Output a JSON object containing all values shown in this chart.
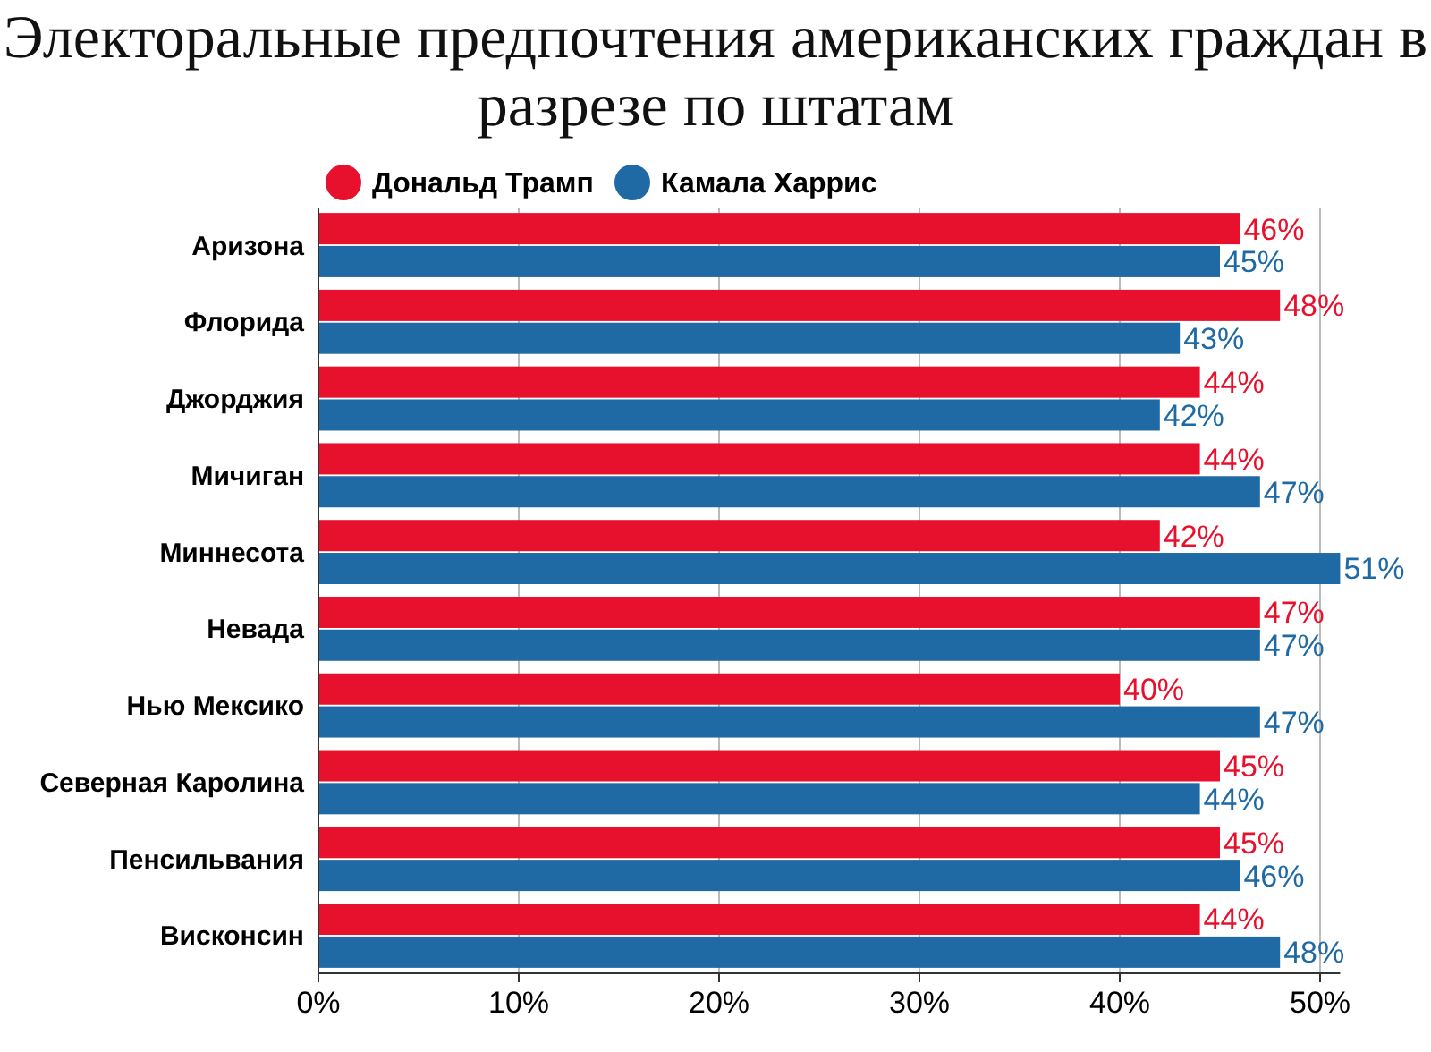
{
  "chart_data": {
    "type": "bar",
    "orientation": "horizontal",
    "title": "Электоральные предпочтения американских граждан в разрезе по штатам",
    "categories": [
      "Аризона",
      "Флорида",
      "Джорджия",
      "Мичиган",
      "Миннесота",
      "Невада",
      "Нью Мексико",
      "Северная Каролина",
      "Пенсильвания",
      "Висконсин"
    ],
    "series": [
      {
        "name": "Дональд Трамп",
        "color": "#e8112d",
        "values": [
          46,
          48,
          44,
          44,
          42,
          47,
          40,
          45,
          45,
          44
        ],
        "value_labels": [
          "46%",
          "48%",
          "44%",
          "44%",
          "42%",
          "47%",
          "40%",
          "45%",
          "45%",
          "44%"
        ]
      },
      {
        "name": "Камала Харрис",
        "color": "#1f6aa5",
        "values": [
          45,
          43,
          42,
          47,
          51,
          47,
          47,
          44,
          46,
          48
        ],
        "value_labels": [
          "45%",
          "43%",
          "42%",
          "47%",
          "51%",
          "47%",
          "47%",
          "44%",
          "46%",
          "48%"
        ]
      }
    ],
    "xlim": [
      0,
      51
    ],
    "xticks": [
      {
        "value": 0,
        "label": "0%"
      },
      {
        "value": 10,
        "label": "10%"
      },
      {
        "value": 20,
        "label": "20%"
      },
      {
        "value": 30,
        "label": "30%"
      },
      {
        "value": 40,
        "label": "40%"
      },
      {
        "value": 50,
        "label": "50%"
      }
    ],
    "grid": "x",
    "legend": "top left"
  }
}
